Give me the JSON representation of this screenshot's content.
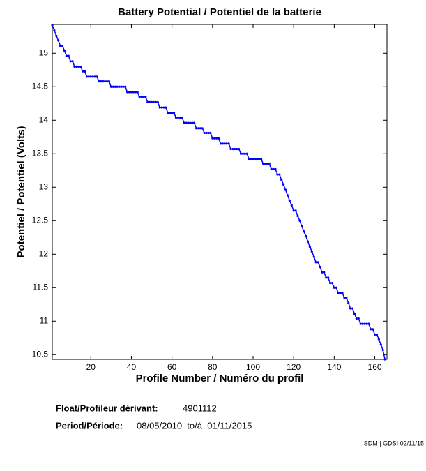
{
  "chart_data": {
    "type": "line",
    "title": "Battery Potential / Potentiel de la batterie",
    "xlabel": "Profile Number / Numéro du profil",
    "ylabel": "Potentiel / Potentiel (Volts)",
    "xlim": [
      1,
      166
    ],
    "ylim": [
      10.43,
      15.43
    ],
    "xticks": [
      20,
      40,
      60,
      80,
      100,
      120,
      140,
      160
    ],
    "yticks": [
      10.5,
      11,
      11.5,
      12,
      12.5,
      13,
      13.5,
      14,
      14.5,
      15
    ],
    "series": [
      {
        "color": "#0000ff",
        "x": [
          1,
          2,
          3,
          4,
          5,
          6,
          7,
          8,
          9,
          10,
          11,
          12,
          13,
          14,
          15,
          16,
          17,
          18,
          19,
          20,
          21,
          22,
          23,
          24,
          25,
          26,
          27,
          28,
          29,
          30,
          31,
          32,
          33,
          34,
          35,
          36,
          37,
          38,
          39,
          40,
          41,
          42,
          43,
          44,
          45,
          46,
          47,
          48,
          49,
          50,
          51,
          52,
          53,
          54,
          55,
          56,
          57,
          58,
          59,
          60,
          61,
          62,
          63,
          64,
          65,
          66,
          67,
          68,
          69,
          70,
          71,
          72,
          73,
          74,
          75,
          76,
          77,
          78,
          79,
          80,
          81,
          82,
          83,
          84,
          85,
          86,
          87,
          88,
          89,
          90,
          91,
          92,
          93,
          94,
          95,
          96,
          97,
          98,
          99,
          100,
          101,
          102,
          103,
          104,
          105,
          106,
          107,
          108,
          109,
          110,
          111,
          112,
          113,
          114,
          115,
          116,
          117,
          118,
          119,
          120,
          121,
          122,
          123,
          124,
          125,
          126,
          127,
          128,
          129,
          130,
          131,
          132,
          133,
          134,
          135,
          136,
          137,
          138,
          139,
          140,
          141,
          142,
          143,
          144,
          145,
          146,
          147,
          148,
          149,
          150,
          151,
          152,
          153,
          154,
          155,
          156,
          157,
          158,
          159,
          160,
          161,
          162,
          163,
          164,
          165
        ],
        "values": [
          15.42,
          15.34,
          15.26,
          15.19,
          15.11,
          15.11,
          15.04,
          14.96,
          14.96,
          14.88,
          14.88,
          14.8,
          14.8,
          14.8,
          14.8,
          14.73,
          14.73,
          14.65,
          14.65,
          14.65,
          14.65,
          14.65,
          14.65,
          14.58,
          14.58,
          14.58,
          14.58,
          14.58,
          14.58,
          14.5,
          14.5,
          14.5,
          14.5,
          14.5,
          14.5,
          14.5,
          14.5,
          14.42,
          14.42,
          14.42,
          14.42,
          14.42,
          14.42,
          14.35,
          14.35,
          14.35,
          14.35,
          14.27,
          14.27,
          14.27,
          14.27,
          14.27,
          14.27,
          14.19,
          14.19,
          14.19,
          14.19,
          14.11,
          14.11,
          14.11,
          14.11,
          14.04,
          14.04,
          14.04,
          14.04,
          13.96,
          13.96,
          13.96,
          13.96,
          13.96,
          13.96,
          13.88,
          13.88,
          13.88,
          13.88,
          13.81,
          13.81,
          13.81,
          13.81,
          13.73,
          13.73,
          13.73,
          13.73,
          13.65,
          13.65,
          13.65,
          13.65,
          13.65,
          13.57,
          13.57,
          13.57,
          13.57,
          13.57,
          13.5,
          13.5,
          13.5,
          13.5,
          13.42,
          13.42,
          13.42,
          13.42,
          13.42,
          13.42,
          13.42,
          13.35,
          13.35,
          13.35,
          13.35,
          13.27,
          13.27,
          13.27,
          13.19,
          13.19,
          13.11,
          13.04,
          12.96,
          12.88,
          12.8,
          12.73,
          12.65,
          12.65,
          12.57,
          12.5,
          12.42,
          12.34,
          12.27,
          12.19,
          12.11,
          12.04,
          11.96,
          11.88,
          11.88,
          11.81,
          11.73,
          11.73,
          11.65,
          11.65,
          11.57,
          11.57,
          11.5,
          11.5,
          11.42,
          11.42,
          11.42,
          11.35,
          11.35,
          11.27,
          11.19,
          11.19,
          11.11,
          11.04,
          11.04,
          10.96,
          10.96,
          10.96,
          10.96,
          10.96,
          10.88,
          10.88,
          10.8,
          10.8,
          10.73,
          10.65,
          10.57,
          10.43
        ]
      }
    ]
  },
  "footer": {
    "float_label": "Float/Profileur dérivant:",
    "float_value": "4901112",
    "period_label": "Period/Période:",
    "period_value": "08/05/2010  to/à  01/11/2015",
    "credit": "ISDM | GDSI 02/11/15"
  }
}
